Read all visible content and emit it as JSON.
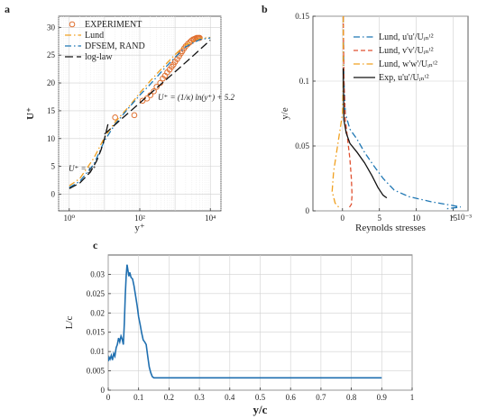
{
  "chart_data": [
    {
      "panel": "a",
      "type": "line",
      "xlabel": "y⁺",
      "ylabel": "U⁺",
      "xscale": "log",
      "xlim": [
        0.5,
        20000
      ],
      "ylim": [
        -3,
        32
      ],
      "x_ticks": [
        1,
        100,
        10000
      ],
      "x_tick_labels": [
        "10⁰",
        "10²",
        "10⁴"
      ],
      "y_ticks": [
        0,
        5,
        10,
        15,
        20,
        25,
        30
      ],
      "grid": true,
      "legend": "top-left",
      "annotations": [
        "U⁺ = y⁺",
        "U⁺ = (1/κ) ln(y⁺) + 5.2"
      ],
      "series": [
        {
          "name": "EXPERIMENT",
          "style": "marker-circle",
          "color": "#e07030",
          "x": [
            20,
            70,
            120,
            160,
            200,
            250,
            300,
            380,
            450,
            520,
            600,
            700,
            800,
            900,
            1000,
            1150,
            1300,
            1450,
            1600,
            1800,
            2000,
            2300,
            2600,
            2900,
            3200,
            3500,
            3800,
            4100,
            4400,
            4700,
            5000
          ],
          "y": [
            13.8,
            14.2,
            16.8,
            17.2,
            17.8,
            18.5,
            19.3,
            20.0,
            20.8,
            21.3,
            21.9,
            22.4,
            22.9,
            23.3,
            23.8,
            24.3,
            24.8,
            25.3,
            25.7,
            26.2,
            26.6,
            27.0,
            27.3,
            27.6,
            27.8,
            27.9,
            28.0,
            28.1,
            28.1,
            28.1,
            28.1
          ]
        },
        {
          "name": "Lund",
          "style": "dash-dot",
          "color": "#f0a020",
          "x": [
            1,
            2,
            5,
            10,
            20,
            50,
            100,
            200,
            500,
            1000,
            2000,
            5000,
            10000
          ],
          "y": [
            1.5,
            2.8,
            6.5,
            10.2,
            13.0,
            15.8,
            18.2,
            20.4,
            23.1,
            25.1,
            26.9,
            28.0,
            28.2
          ]
        },
        {
          "name": "DFSEM, RAND",
          "style": "dash-dot",
          "color": "#1f77b4",
          "x": [
            1,
            2,
            5,
            10,
            20,
            50,
            100,
            200,
            500,
            1000,
            2000,
            5000,
            10000
          ],
          "y": [
            1.2,
            2.3,
            5.4,
            9.6,
            12.6,
            15.6,
            17.8,
            19.8,
            22.6,
            24.6,
            26.5,
            27.8,
            28.1
          ]
        },
        {
          "name": "log-law",
          "style": "long-dash",
          "color": "#111111",
          "x": [
            10,
            30,
            100,
            300,
            1000,
            3000,
            10000
          ],
          "y": [
            10.8,
            13.5,
            16.4,
            19.1,
            22.0,
            24.7,
            27.7
          ]
        },
        {
          "name": "",
          "style": "long-dash",
          "color": "#111111",
          "x": [
            1,
            2,
            4,
            6,
            8,
            10,
            13
          ],
          "y": [
            1,
            2,
            4,
            6,
            8,
            10,
            13
          ]
        }
      ]
    },
    {
      "panel": "b",
      "type": "line",
      "xlabel": "Reynolds stresses",
      "ylabel": "y/e",
      "x_multiplier_label": "× 10⁻³",
      "xlim": [
        -0.004,
        0.017
      ],
      "ylim": [
        0,
        0.15
      ],
      "x_ticks": [
        0,
        0.005,
        0.01,
        0.015
      ],
      "x_tick_labels": [
        "0",
        "5",
        "10",
        "15"
      ],
      "y_ticks": [
        0,
        0.05,
        0.1,
        0.15
      ],
      "y_tick_labels": [
        "0",
        "0.05",
        "0.1",
        "0.15"
      ],
      "grid": true,
      "legend": "top-right",
      "series": [
        {
          "name": "Lund, u'u'/Uᵢₙᵗ²",
          "style": "dash-dot",
          "color": "#1f77b4",
          "x": [
            0.0001,
            0.0002,
            0.0004,
            0.001,
            0.002,
            0.003,
            0.0042,
            0.0055,
            0.007,
            0.009,
            0.012,
            0.015,
            0.016,
            0.014
          ],
          "y": [
            0.15,
            0.1,
            0.075,
            0.063,
            0.055,
            0.045,
            0.035,
            0.025,
            0.016,
            0.011,
            0.007,
            0.004,
            0.003,
            0.0015
          ]
        },
        {
          "name": "Lund, v'v'/Uᵢₙᵗ²",
          "style": "dash",
          "color": "#e05030",
          "x": [
            0.0001,
            0.0002,
            0.0004,
            0.0007,
            0.001,
            0.0012,
            0.0013,
            0.0012,
            0.0008
          ],
          "y": [
            0.15,
            0.1,
            0.07,
            0.055,
            0.04,
            0.025,
            0.012,
            0.005,
            0.0015
          ]
        },
        {
          "name": "Lund, w'w'/Uᵢₙᵗ²",
          "style": "dash-dot",
          "color": "#f0a020",
          "x": [
            0.0001,
            0.0001,
            0.0,
            -0.0004,
            -0.0008,
            -0.0012,
            -0.0014,
            -0.001,
            -0.0003
          ],
          "y": [
            0.15,
            0.1,
            0.075,
            0.06,
            0.045,
            0.03,
            0.015,
            0.006,
            0.0015
          ]
        },
        {
          "name": "Exp, u'u'/Uᵢₙᵗ²",
          "style": "solid",
          "color": "#111111",
          "x": [
            0.0001,
            0.0002,
            0.0005,
            0.001,
            0.002,
            0.003,
            0.004,
            0.0048,
            0.0055,
            0.006
          ],
          "y": [
            0.11,
            0.07,
            0.06,
            0.052,
            0.045,
            0.037,
            0.027,
            0.018,
            0.012,
            0.01
          ]
        }
      ]
    },
    {
      "panel": "c",
      "type": "line",
      "xlabel": "y/c",
      "ylabel": "L/c",
      "xlim": [
        0,
        1
      ],
      "ylim": [
        0,
        0.035
      ],
      "x_ticks": [
        0,
        0.1,
        0.2,
        0.3,
        0.4,
        0.5,
        0.6,
        0.7,
        0.8,
        0.9,
        1
      ],
      "x_tick_labels": [
        "0",
        "0.1",
        "0.2",
        "0.3",
        "0.4",
        "0.5",
        "0.6",
        "0.7",
        "0.8",
        "0.9",
        "1"
      ],
      "y_ticks": [
        0,
        0.005,
        0.01,
        0.015,
        0.02,
        0.025,
        0.03
      ],
      "y_tick_labels": [
        "0",
        "0.005",
        "0.01",
        "0.015",
        "0.02",
        "0.025",
        "0.03"
      ],
      "grid": true,
      "series": [
        {
          "name": "",
          "style": "solid",
          "color": "#1f6fb0",
          "x": [
            0,
            0.003,
            0.006,
            0.01,
            0.014,
            0.018,
            0.022,
            0.026,
            0.03,
            0.034,
            0.038,
            0.042,
            0.046,
            0.05,
            0.053,
            0.056,
            0.059,
            0.062,
            0.065,
            0.068,
            0.071,
            0.075,
            0.08,
            0.085,
            0.09,
            0.095,
            0.1,
            0.105,
            0.11,
            0.115,
            0.12,
            0.125,
            0.13,
            0.135,
            0.14,
            0.145,
            0.15,
            0.155,
            0.3,
            0.5,
            0.7,
            0.9
          ],
          "y": [
            0.0075,
            0.0085,
            0.008,
            0.009,
            0.0078,
            0.0095,
            0.0088,
            0.011,
            0.0118,
            0.0135,
            0.0125,
            0.014,
            0.0132,
            0.0118,
            0.0175,
            0.0245,
            0.0295,
            0.0325,
            0.031,
            0.0295,
            0.0305,
            0.0292,
            0.0288,
            0.027,
            0.0245,
            0.022,
            0.019,
            0.017,
            0.0148,
            0.013,
            0.0125,
            0.0118,
            0.0088,
            0.006,
            0.0045,
            0.0035,
            0.0032,
            0.0032,
            0.0032,
            0.0032,
            0.0032,
            0.0032
          ]
        }
      ]
    }
  ]
}
